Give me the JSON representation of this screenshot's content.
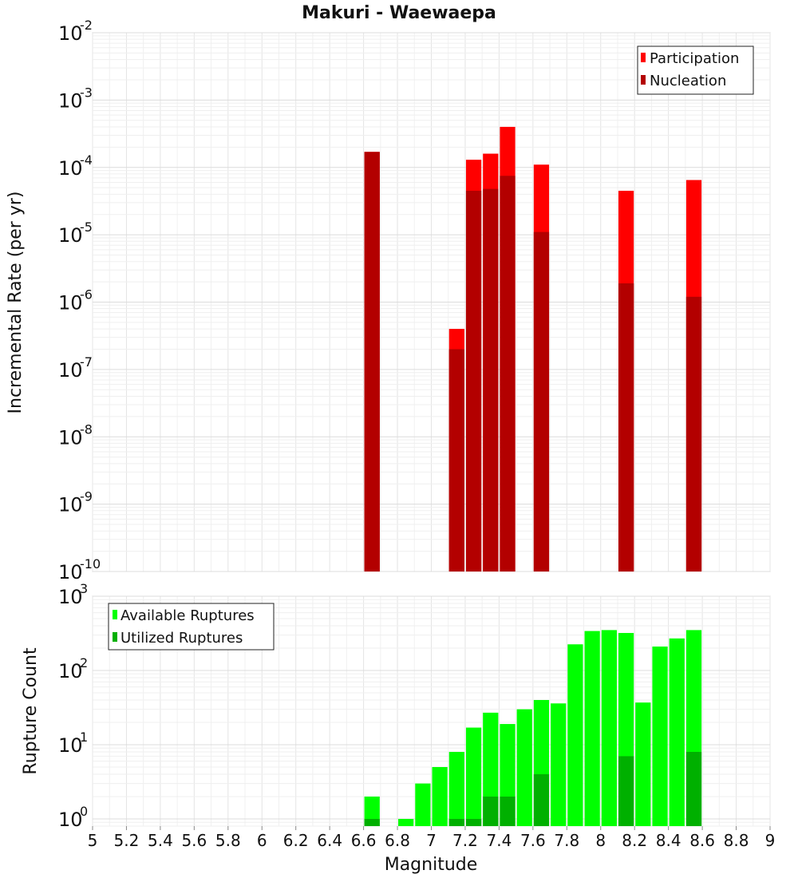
{
  "chart_data": [
    {
      "type": "bar",
      "title": "Makuri - Waewaepa",
      "ylabel": "Incremental Rate (per yr)",
      "xlim": [
        5,
        9
      ],
      "ylim": [
        1e-10,
        0.01
      ],
      "yscale": "log",
      "grid": true,
      "legend_position": "top-right",
      "ytick_base": "10",
      "ytick_exponents": [
        "-10",
        "-9",
        "-8",
        "-7",
        "-6",
        "-5",
        "-4",
        "-3",
        "-2"
      ],
      "series": [
        {
          "name": "Participation",
          "color": "#ff0000",
          "x": [
            6.65,
            7.15,
            7.25,
            7.35,
            7.45,
            7.65,
            8.15,
            8.55
          ],
          "values": [
            0.00017,
            4e-07,
            0.00013,
            0.00016,
            0.0004,
            0.00011,
            4.5e-05,
            6.5e-05
          ]
        },
        {
          "name": "Nucleation",
          "color": "#b30000",
          "x": [
            6.65,
            7.15,
            7.25,
            7.35,
            7.45,
            7.65,
            8.15,
            8.55
          ],
          "values": [
            0.00017,
            2e-07,
            4.5e-05,
            4.8e-05,
            7.5e-05,
            1.1e-05,
            1.9e-06,
            1.2e-06
          ]
        }
      ]
    },
    {
      "type": "bar",
      "xlabel": "Magnitude",
      "ylabel": "Rupture Count",
      "xlim": [
        5,
        9
      ],
      "ylim": [
        0.8,
        1000
      ],
      "yscale": "log",
      "grid": true,
      "legend_position": "top-left",
      "ytick_base": "10",
      "ytick_exponents": [
        "0",
        "1",
        "2",
        "3"
      ],
      "xticks": [
        "5",
        "5.2",
        "5.4",
        "5.6",
        "5.8",
        "6",
        "6.2",
        "6.4",
        "6.6",
        "6.8",
        "7",
        "7.2",
        "7.4",
        "7.6",
        "7.8",
        "8",
        "8.2",
        "8.4",
        "8.6",
        "8.8",
        "9"
      ],
      "series": [
        {
          "name": "Available Ruptures",
          "color": "#00ff00",
          "x": [
            6.65,
            6.85,
            6.95,
            7.05,
            7.15,
            7.25,
            7.35,
            7.45,
            7.55,
            7.65,
            7.75,
            7.85,
            7.95,
            8.05,
            8.15,
            8.25,
            8.35,
            8.45,
            8.55
          ],
          "values": [
            2,
            1,
            3,
            5,
            8,
            17,
            27,
            19,
            30,
            40,
            36,
            225,
            340,
            350,
            320,
            37,
            210,
            270,
            350
          ]
        },
        {
          "name": "Utilized Ruptures",
          "color": "#00b000",
          "x": [
            6.65,
            7.15,
            7.25,
            7.35,
            7.45,
            7.65,
            8.15,
            8.55
          ],
          "values": [
            1,
            1,
            1,
            2,
            2,
            4,
            7,
            8
          ]
        }
      ]
    }
  ]
}
